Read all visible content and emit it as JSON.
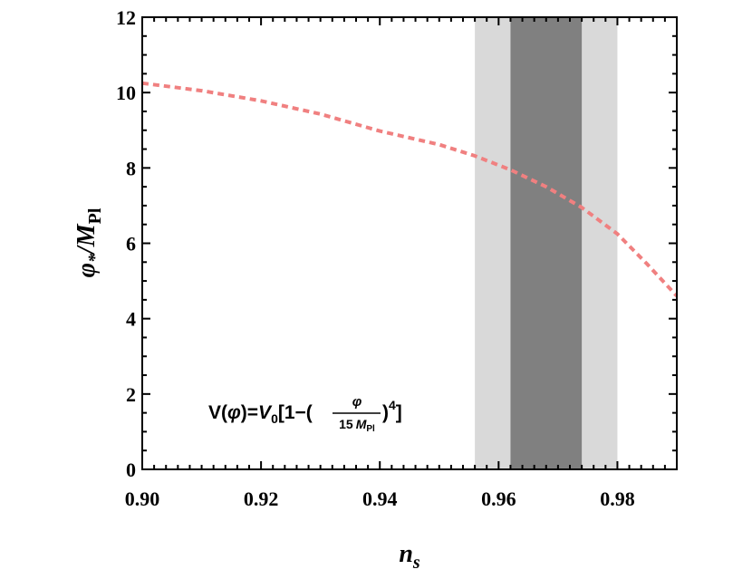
{
  "chart_data": {
    "type": "line",
    "title": "",
    "xlim": [
      0.9,
      0.99
    ],
    "ylim": [
      0,
      12
    ],
    "x_ticks": [
      "0.90",
      "0.92",
      "0.94",
      "0.96",
      "0.98"
    ],
    "y_ticks": [
      "0",
      "2",
      "4",
      "6",
      "8",
      "10",
      "12"
    ],
    "xlabel": {
      "main": "n",
      "sub": "s"
    },
    "ylabel": {
      "main": "φ",
      "sub": "*",
      "mid": "/M",
      "sub2": "Pl"
    },
    "bands": [
      {
        "range": [
          0.956,
          0.98
        ],
        "color": "#d9d9d9"
      },
      {
        "range": [
          0.962,
          0.974
        ],
        "color": "#808080"
      }
    ],
    "series": [
      {
        "style": "dashed",
        "color": "#f08080",
        "points": [
          [
            0.9,
            10.25
          ],
          [
            0.91,
            10.05
          ],
          [
            0.92,
            9.78
          ],
          [
            0.93,
            9.43
          ],
          [
            0.94,
            8.98
          ],
          [
            0.95,
            8.62
          ],
          [
            0.956,
            8.32
          ],
          [
            0.962,
            7.95
          ],
          [
            0.968,
            7.5
          ],
          [
            0.974,
            6.95
          ],
          [
            0.98,
            6.25
          ],
          [
            0.985,
            5.45
          ],
          [
            0.99,
            4.6
          ]
        ]
      }
    ],
    "annotation": {
      "lhs_a": "V(",
      "lhs_phi": "φ",
      "lhs_b": ")=",
      "v": "V",
      "v_sub": "0",
      "bracket_open": "[1−(",
      "frac_num": "φ",
      "frac_den_a": "15",
      "frac_den_m": "M",
      "frac_den_sub": "Pl",
      "close": ")",
      "power": "4",
      "bracket_close": "]"
    }
  }
}
